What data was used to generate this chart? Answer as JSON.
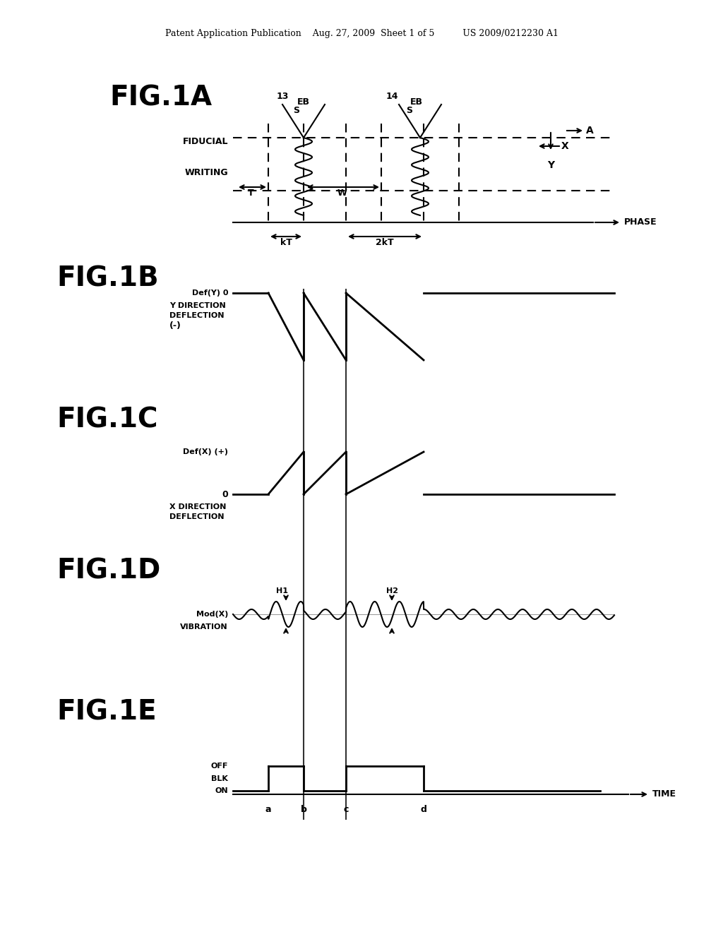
{
  "bg_color": "#ffffff",
  "text_color": "#000000",
  "header_text": "Patent Application Publication    Aug. 27, 2009  Sheet 1 of 5          US 2009/0212230 A1",
  "fig1a_label": "FIG.1A",
  "fig1b_label": "FIG.1B",
  "fig1c_label": "FIG.1C",
  "fig1d_label": "FIG.1D",
  "fig1e_label": "FIG.1E",
  "line_color": "#000000",
  "lw": 1.5,
  "lw_thick": 2.0
}
